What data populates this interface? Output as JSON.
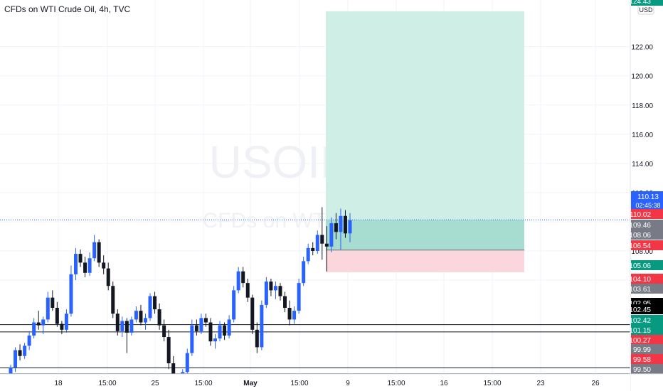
{
  "header": {
    "title": "CFDs on WTI Crude Oil, 4h, TVC"
  },
  "watermark": {
    "symbol": "USOIL, 4h",
    "description": "CFDs on WTI Crude Oil"
  },
  "currency": "USD",
  "colors": {
    "up": "#2962ff",
    "down": "#131722",
    "profit_zone": "#cfeee6",
    "profit_zone_active": "#a7dcd0",
    "loss_zone": "#fbd7dc",
    "green_tag": "#089981",
    "red_tag": "#f23645",
    "gray_tag": "#787b86",
    "black_tag": "#000000",
    "grid": "#f0f3fa",
    "last_price_line": "#2962ff"
  },
  "chart_data": {
    "type": "candlestick",
    "title": "CFDs on WTI Crude Oil, 4h, TVC",
    "y_axis": {
      "ticks": [
        106,
        108,
        110,
        112,
        114,
        116,
        118,
        120,
        122
      ],
      "ylim": [
        98.4,
        125.2
      ],
      "grid": true
    },
    "x_axis": {
      "tick_labels": [
        "18",
        "15:00",
        "25",
        "15:00",
        "May",
        "15:00",
        "9",
        "15:00",
        "16",
        "15:00",
        "23",
        "26"
      ]
    },
    "last_price": 110.13,
    "countdown": "02:45:38",
    "price_tags": [
      {
        "value": "124.43",
        "style": "green"
      },
      {
        "value": "110.13",
        "style": "blue"
      },
      {
        "value": "110.02",
        "style": "red"
      },
      {
        "value": "109.46",
        "style": "gray"
      },
      {
        "value": "108.06",
        "style": "gray"
      },
      {
        "value": "106.54",
        "style": "red"
      },
      {
        "value": "105.06",
        "style": "green"
      },
      {
        "value": "104.10",
        "style": "red"
      },
      {
        "value": "103.61",
        "style": "gray"
      },
      {
        "value": "102.95",
        "style": "black"
      },
      {
        "value": "102.45",
        "style": "black"
      },
      {
        "value": "102.42",
        "style": "green"
      },
      {
        "value": "101.15",
        "style": "green"
      },
      {
        "value": "100.27",
        "style": "red"
      },
      {
        "value": "99.99",
        "style": "gray"
      },
      {
        "value": "99.58",
        "style": "red"
      },
      {
        "value": "99.50",
        "style": "gray"
      }
    ],
    "horizontal_levels": [
      102.95,
      102.45,
      99.99,
      99.58
    ],
    "position": {
      "entry": 108.06,
      "target": 124.43,
      "stop": 106.54
    },
    "candles": [
      [
        98.6,
        100.2,
        98.3,
        100.0
      ],
      [
        100.0,
        101.4,
        99.7,
        101.2
      ],
      [
        101.2,
        101.6,
        100.5,
        100.8
      ],
      [
        100.8,
        101.7,
        100.6,
        101.5
      ],
      [
        101.5,
        102.5,
        101.2,
        102.2
      ],
      [
        102.2,
        103.4,
        102.0,
        103.1
      ],
      [
        103.1,
        103.9,
        102.6,
        102.9
      ],
      [
        102.9,
        103.5,
        102.3,
        103.3
      ],
      [
        103.3,
        105.2,
        103.1,
        104.8
      ],
      [
        104.8,
        105.3,
        103.9,
        104.1
      ],
      [
        104.1,
        104.5,
        102.8,
        103.0
      ],
      [
        103.0,
        103.2,
        102.3,
        102.6
      ],
      [
        102.6,
        104.0,
        102.4,
        103.7
      ],
      [
        103.7,
        107.0,
        103.5,
        106.4
      ],
      [
        106.4,
        108.2,
        106.0,
        107.8
      ],
      [
        107.8,
        108.1,
        106.9,
        107.2
      ],
      [
        107.2,
        107.6,
        106.2,
        106.5
      ],
      [
        106.5,
        107.9,
        106.3,
        107.5
      ],
      [
        107.5,
        109.1,
        107.3,
        108.6
      ],
      [
        108.6,
        108.8,
        106.9,
        107.2
      ],
      [
        107.2,
        107.7,
        106.4,
        106.8
      ],
      [
        106.8,
        107.2,
        105.3,
        105.6
      ],
      [
        105.6,
        105.9,
        103.4,
        103.7
      ],
      [
        103.7,
        104.0,
        102.2,
        102.5
      ],
      [
        102.5,
        103.5,
        102.1,
        103.2
      ],
      [
        103.2,
        103.4,
        101.0,
        102.4
      ],
      [
        102.4,
        103.5,
        102.2,
        103.3
      ],
      [
        103.3,
        104.2,
        103.1,
        103.9
      ],
      [
        103.9,
        104.3,
        102.9,
        103.1
      ],
      [
        103.1,
        103.7,
        102.6,
        103.4
      ],
      [
        103.4,
        105.1,
        103.2,
        104.9
      ],
      [
        104.9,
        105.2,
        103.7,
        104.0
      ],
      [
        104.0,
        104.4,
        102.6,
        102.9
      ],
      [
        102.9,
        103.3,
        101.8,
        102.1
      ],
      [
        102.1,
        102.6,
        99.9,
        100.3
      ],
      [
        100.3,
        100.8,
        98.7,
        99.1
      ],
      [
        99.1,
        99.5,
        98.3,
        98.6
      ],
      [
        98.6,
        99.9,
        98.4,
        99.7
      ],
      [
        99.7,
        101.3,
        99.5,
        101.0
      ],
      [
        101.0,
        103.3,
        100.8,
        102.9
      ],
      [
        102.9,
        103.3,
        102.2,
        102.5
      ],
      [
        102.5,
        103.7,
        102.3,
        103.4
      ],
      [
        103.4,
        103.7,
        102.8,
        103.1
      ],
      [
        103.1,
        103.4,
        101.5,
        101.8
      ],
      [
        101.8,
        102.3,
        101.3,
        102.0
      ],
      [
        102.0,
        103.2,
        101.8,
        102.9
      ],
      [
        102.9,
        103.1,
        101.9,
        102.2
      ],
      [
        102.2,
        103.6,
        102.0,
        103.3
      ],
      [
        103.3,
        105.6,
        103.1,
        105.3
      ],
      [
        105.3,
        106.9,
        105.1,
        106.6
      ],
      [
        106.6,
        106.9,
        105.5,
        105.8
      ],
      [
        105.8,
        106.1,
        104.5,
        104.8
      ],
      [
        104.8,
        105.0,
        102.3,
        102.6
      ],
      [
        102.6,
        103.1,
        101.0,
        101.4
      ],
      [
        101.4,
        104.6,
        101.2,
        104.3
      ],
      [
        104.3,
        106.2,
        104.1,
        105.9
      ],
      [
        105.9,
        106.1,
        104.9,
        105.3
      ],
      [
        105.3,
        105.9,
        104.7,
        105.6
      ],
      [
        105.6,
        105.8,
        104.6,
        104.9
      ],
      [
        104.9,
        105.2,
        103.8,
        104.1
      ],
      [
        104.1,
        104.6,
        102.9,
        103.3
      ],
      [
        103.3,
        104.2,
        103.0,
        103.9
      ],
      [
        103.9,
        106.1,
        103.7,
        105.8
      ],
      [
        105.8,
        107.6,
        105.6,
        107.3
      ],
      [
        107.3,
        108.5,
        107.1,
        108.2
      ],
      [
        108.2,
        108.6,
        107.7,
        108.0
      ],
      [
        108.0,
        109.4,
        107.8,
        109.1
      ],
      [
        109.1,
        111.0,
        107.4,
        108.5
      ],
      [
        108.5,
        109.7,
        106.6,
        108.3
      ],
      [
        108.3,
        110.3,
        107.9,
        109.9
      ],
      [
        109.9,
        110.6,
        108.8,
        109.3
      ],
      [
        109.3,
        110.9,
        108.1,
        110.4
      ],
      [
        110.4,
        110.8,
        108.9,
        109.2
      ],
      [
        109.2,
        110.6,
        108.6,
        110.1
      ]
    ]
  }
}
